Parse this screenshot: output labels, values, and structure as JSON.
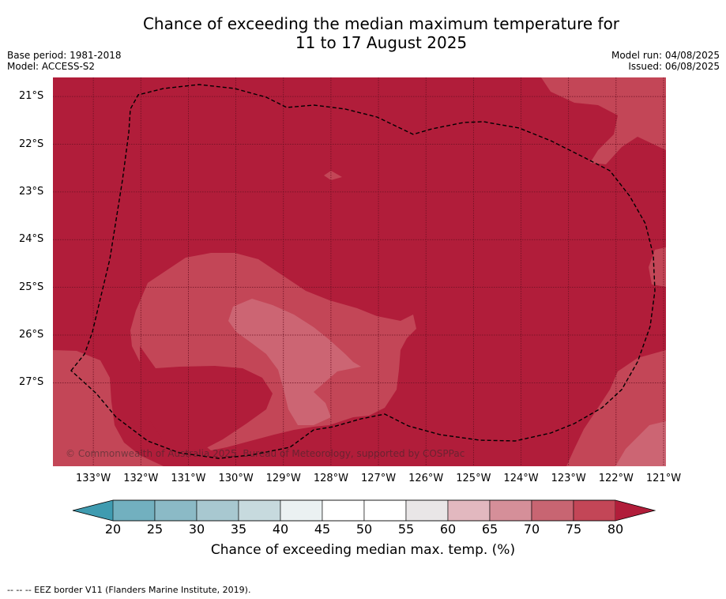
{
  "title": {
    "line1": "Chance of exceeding the median maximum temperature for",
    "line2": "11 to 17 August 2025"
  },
  "meta": {
    "base_period": "Base period: 1981-2018",
    "model": "Model: ACCESS-S2",
    "model_run": "Model run: 04/08/2025",
    "issued": "Issued: 06/08/2025"
  },
  "map": {
    "copyright": "© Commonwealth of Australia 2025, Bureau of Meteorology, supported by COSPPac",
    "lat_labels": [
      "21°S",
      "22°S",
      "23°S",
      "24°S",
      "25°S",
      "26°S",
      "27°S"
    ],
    "lon_labels": [
      "133°W",
      "132°W",
      "131°W",
      "130°W",
      "129°W",
      "128°W",
      "127°W",
      "126°W",
      "125°W",
      "124°W",
      "123°W",
      "122°W",
      "121°W"
    ],
    "lon_range": [
      -133.85,
      -120.95
    ],
    "lat_range": [
      -20.6,
      -28.75
    ],
    "region_colors": {
      "above_80": "#b11d3a",
      "75_80": "#c34657",
      "70_75": "#cc6573"
    }
  },
  "colorbar": {
    "ticks": [
      "20",
      "25",
      "30",
      "35",
      "40",
      "45",
      "50",
      "55",
      "60",
      "65",
      "70",
      "75",
      "80"
    ],
    "colors": [
      "#5ba4b6",
      "#72b0bf",
      "#8bbac6",
      "#a8c8d0",
      "#c7dade",
      "#ebf1f2",
      "#ffffff",
      "#ffffff",
      "#e9e6e7",
      "#e2b8bf",
      "#d58f99",
      "#c86572",
      "#c34657",
      "#b11d3a"
    ],
    "under_color": "#3f9bb0",
    "over_color": "#b11d3a",
    "label": "Chance of exceeding median max. temp. (%)"
  },
  "footer": "--  --  -- EEZ border V11 (Flanders Marine Institute, 2019)."
}
